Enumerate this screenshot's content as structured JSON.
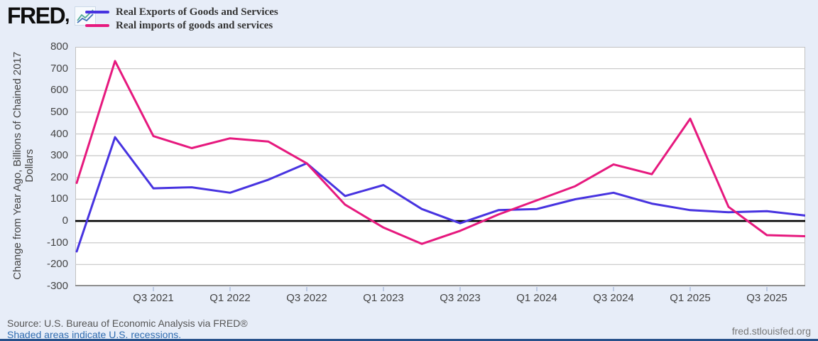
{
  "header": {
    "logo_text": "FRED",
    "logo_mark": ","
  },
  "chart_data": {
    "type": "line",
    "title": "",
    "xlabel": "",
    "ylabel": "Change from Year Ago, Billions of Chained 2017 Dollars",
    "ylim": [
      -300,
      800
    ],
    "y_ticks": [
      800,
      700,
      600,
      500,
      400,
      300,
      200,
      100,
      0,
      -100,
      -200,
      -300
    ],
    "grid": true,
    "zero_line": true,
    "legend_position": "top-left",
    "x": [
      "Q1 2021",
      "Q2 2021",
      "Q3 2021",
      "Q4 2021",
      "Q1 2022",
      "Q2 2022",
      "Q3 2022",
      "Q4 2022",
      "Q1 2023",
      "Q2 2023",
      "Q3 2023",
      "Q4 2023",
      "Q1 2024",
      "Q2 2024",
      "Q3 2024",
      "Q4 2024",
      "Q1 2025",
      "Q2 2025",
      "Q3 2025",
      "Q4 2025"
    ],
    "x_tick_indices": [
      2,
      4,
      6,
      8,
      10,
      12,
      14,
      16,
      18
    ],
    "x_tick_labels": [
      "Q3 2021",
      "Q1 2022",
      "Q3 2022",
      "Q1 2023",
      "Q3 2023",
      "Q1 2024",
      "Q3 2024",
      "Q1 2025",
      "Q3 2025"
    ],
    "series": [
      {
        "name": "Real Exports of Goods and Services",
        "color": "#4733e0",
        "values": [
          -140,
          385,
          150,
          155,
          130,
          190,
          265,
          115,
          165,
          55,
          -10,
          50,
          55,
          100,
          130,
          80,
          50,
          40,
          45,
          25
        ]
      },
      {
        "name": "Real imports of goods and services",
        "color": "#e6197e",
        "values": [
          175,
          735,
          390,
          335,
          380,
          365,
          265,
          75,
          -30,
          -105,
          -45,
          30,
          95,
          160,
          260,
          215,
          470,
          65,
          -65,
          -70
        ]
      }
    ]
  },
  "footer": {
    "source": "Source: U.S. Bureau of Economic Analysis via FRED®",
    "recession_note": "Shaded areas indicate U.S. recessions.",
    "site": "fred.stlouisfed.org"
  }
}
